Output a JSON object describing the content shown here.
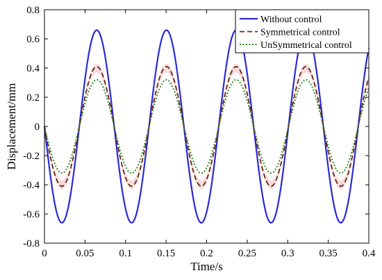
{
  "chart_data": {
    "type": "line",
    "xlabel": "Time/s",
    "ylabel": "Displacement/mm",
    "xlim": [
      0,
      0.4
    ],
    "ylim": [
      -0.8,
      0.8
    ],
    "x_ticks": [
      "0",
      "0.05",
      "0.1",
      "0.15",
      "0.2",
      "0.25",
      "0.3",
      "0.35",
      "0.4"
    ],
    "y_ticks": [
      "0.8",
      "0.6",
      "0.4",
      "0.2",
      "0",
      "-0.2",
      "-0.4",
      "-0.6",
      "-0.8"
    ],
    "grid": false,
    "legend_position": "top-right",
    "frequency_hz": 11.63,
    "series": [
      {
        "name": "Without control",
        "amplitude": 0.66,
        "color": "#2a2ad4",
        "style": "solid"
      },
      {
        "name": "Symmetrical control",
        "amplitude": 0.41,
        "color": "#6b2414",
        "style": "dashed"
      },
      {
        "name": "UnSymmetrical control",
        "amplitude": 0.32,
        "color": "#2f8a22",
        "style": "dotted"
      }
    ],
    "band": {
      "amplitude_low": 0.37,
      "amplitude_high": 0.43,
      "color": "#f6dada"
    }
  }
}
